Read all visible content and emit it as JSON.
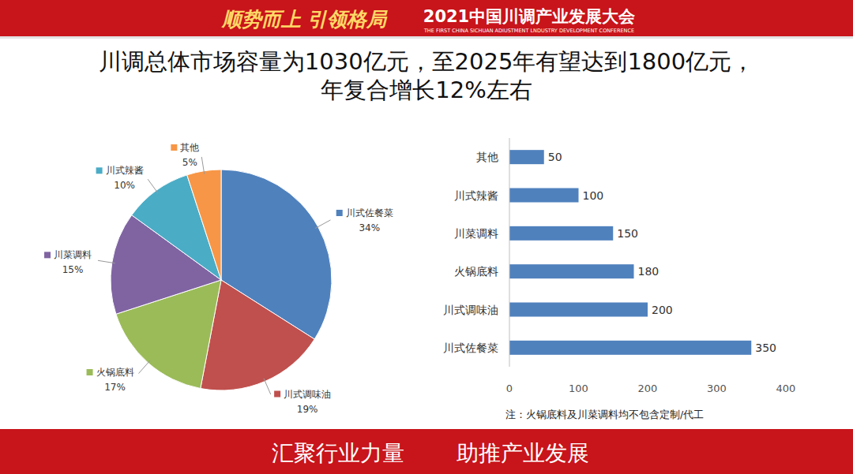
{
  "header": {
    "slogan": "顺势而上 引领格局",
    "title": "2021中国川调产业发展大会",
    "subtitle": "THE FIRST CHINA SICHUAN ADIUSTMENT LNDUSTRY DEVELOPMENT CONFERENCE"
  },
  "title_lines": [
    "川调总体市场容量为1030亿元，至2025年有望达到1800亿元，",
    "年复合增长12%左右"
  ],
  "chart_data": [
    {
      "type": "pie",
      "categories": [
        "川式佐餐菜",
        "川式调味油",
        "火锅底料",
        "川菜调料",
        "川式辣酱",
        "其他"
      ],
      "values": [
        34,
        19,
        17,
        15,
        10,
        5
      ],
      "value_labels": [
        "34%",
        "19%",
        "17%",
        "15%",
        "10%",
        "5%"
      ],
      "colors": [
        "#4f81bd",
        "#c0504d",
        "#9bbb59",
        "#8064a2",
        "#4bacc6",
        "#f79646"
      ],
      "data_labels": true
    },
    {
      "type": "bar",
      "orientation": "horizontal",
      "categories": [
        "其他",
        "川式辣酱",
        "川菜调料",
        "火锅底料",
        "川式调味油",
        "川式佐餐菜"
      ],
      "values": [
        50,
        100,
        150,
        180,
        200,
        350
      ],
      "color": "#4f81bd",
      "xlim": [
        0,
        400
      ],
      "xticks": [
        0,
        100,
        200,
        300,
        400
      ],
      "data_labels": true,
      "grid": false
    }
  ],
  "note": "注：火锅底料及川菜调料均不包含定制/代工",
  "footer": [
    "汇聚行业力量",
    "助推产业发展"
  ]
}
